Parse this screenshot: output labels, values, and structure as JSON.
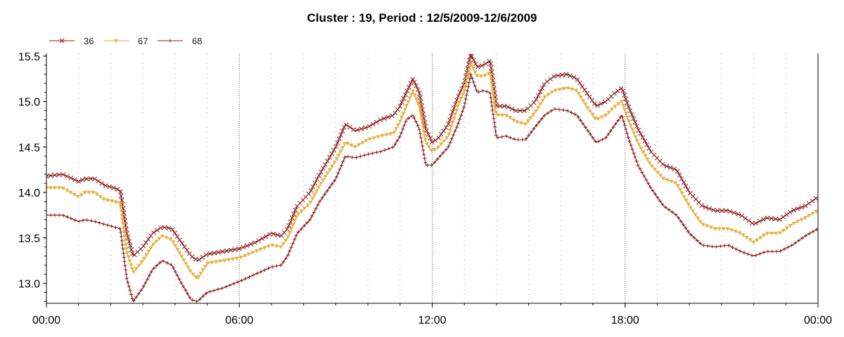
{
  "chart_data": {
    "type": "line",
    "title": "Cluster : 19, Period : 12/5/2009-12/6/2009",
    "xlabel": "",
    "ylabel": "",
    "x_ticks": [
      "00:00",
      "06:00",
      "12:00",
      "18:00",
      "00:00"
    ],
    "x_ticks_hours": [
      0,
      6,
      12,
      18,
      24
    ],
    "xlim_hours": [
      0,
      24
    ],
    "ylim": [
      12.78,
      15.53
    ],
    "y_ticks": [
      "13.0",
      "13.5",
      "14.0",
      "14.5",
      "15.0",
      "15.5"
    ],
    "grid": "vertical dotted",
    "legend_placement": "top-left",
    "series": [
      {
        "name": "36",
        "color": "#8b1a1a",
        "marker": "x",
        "points": [
          [
            0,
            14.18
          ],
          [
            0.5,
            14.2
          ],
          [
            1,
            14.12
          ],
          [
            1.2,
            14.15
          ],
          [
            1.5,
            14.15
          ],
          [
            1.8,
            14.08
          ],
          [
            2.1,
            14.05
          ],
          [
            2.3,
            14.02
          ],
          [
            2.5,
            13.55
          ],
          [
            2.7,
            13.3
          ],
          [
            3,
            13.4
          ],
          [
            3.3,
            13.55
          ],
          [
            3.6,
            13.62
          ],
          [
            3.9,
            13.6
          ],
          [
            4.2,
            13.45
          ],
          [
            4.5,
            13.3
          ],
          [
            4.7,
            13.25
          ],
          [
            5,
            13.32
          ],
          [
            5.5,
            13.35
          ],
          [
            6,
            13.38
          ],
          [
            6.5,
            13.45
          ],
          [
            7,
            13.55
          ],
          [
            7.3,
            13.52
          ],
          [
            7.5,
            13.6
          ],
          [
            7.8,
            13.85
          ],
          [
            8.2,
            14.0
          ],
          [
            8.5,
            14.2
          ],
          [
            9,
            14.5
          ],
          [
            9.3,
            14.75
          ],
          [
            9.6,
            14.68
          ],
          [
            10,
            14.72
          ],
          [
            10.4,
            14.8
          ],
          [
            10.8,
            14.85
          ],
          [
            11,
            14.95
          ],
          [
            11.2,
            15.1
          ],
          [
            11.4,
            15.25
          ],
          [
            11.6,
            15.1
          ],
          [
            11.8,
            14.7
          ],
          [
            12,
            14.55
          ],
          [
            12.2,
            14.6
          ],
          [
            12.5,
            14.75
          ],
          [
            12.8,
            15.05
          ],
          [
            13,
            15.2
          ],
          [
            13.2,
            15.52
          ],
          [
            13.4,
            15.38
          ],
          [
            13.6,
            15.4
          ],
          [
            13.8,
            15.45
          ],
          [
            14,
            14.95
          ],
          [
            14.3,
            14.95
          ],
          [
            14.6,
            14.9
          ],
          [
            14.9,
            14.9
          ],
          [
            15.2,
            15.0
          ],
          [
            15.5,
            15.2
          ],
          [
            15.8,
            15.28
          ],
          [
            16.2,
            15.3
          ],
          [
            16.5,
            15.25
          ],
          [
            16.8,
            15.1
          ],
          [
            17.1,
            14.95
          ],
          [
            17.4,
            15.0
          ],
          [
            17.7,
            15.1
          ],
          [
            17.9,
            15.15
          ],
          [
            18.1,
            14.95
          ],
          [
            18.4,
            14.7
          ],
          [
            18.8,
            14.45
          ],
          [
            19.2,
            14.3
          ],
          [
            19.6,
            14.25
          ],
          [
            20,
            14.0
          ],
          [
            20.4,
            13.85
          ],
          [
            20.8,
            13.8
          ],
          [
            21.2,
            13.8
          ],
          [
            21.6,
            13.75
          ],
          [
            22,
            13.65
          ],
          [
            22.4,
            13.72
          ],
          [
            22.8,
            13.7
          ],
          [
            23.2,
            13.8
          ],
          [
            23.6,
            13.85
          ],
          [
            24,
            13.95
          ]
        ]
      },
      {
        "name": "67",
        "color": "#e8b040",
        "marker": "triangle-down",
        "points": [
          [
            0,
            14.05
          ],
          [
            0.5,
            14.05
          ],
          [
            1,
            13.95
          ],
          [
            1.2,
            14.0
          ],
          [
            1.5,
            14.0
          ],
          [
            1.8,
            13.92
          ],
          [
            2.1,
            13.9
          ],
          [
            2.3,
            13.88
          ],
          [
            2.5,
            13.35
          ],
          [
            2.7,
            13.12
          ],
          [
            3,
            13.25
          ],
          [
            3.3,
            13.42
          ],
          [
            3.6,
            13.52
          ],
          [
            3.9,
            13.48
          ],
          [
            4.2,
            13.3
          ],
          [
            4.5,
            13.12
          ],
          [
            4.7,
            13.05
          ],
          [
            5,
            13.22
          ],
          [
            5.5,
            13.25
          ],
          [
            6,
            13.28
          ],
          [
            6.5,
            13.35
          ],
          [
            7,
            13.42
          ],
          [
            7.3,
            13.4
          ],
          [
            7.5,
            13.5
          ],
          [
            7.8,
            13.75
          ],
          [
            8.2,
            13.88
          ],
          [
            8.5,
            14.08
          ],
          [
            9,
            14.35
          ],
          [
            9.3,
            14.55
          ],
          [
            9.6,
            14.5
          ],
          [
            10,
            14.58
          ],
          [
            10.4,
            14.62
          ],
          [
            10.8,
            14.65
          ],
          [
            11,
            14.78
          ],
          [
            11.2,
            14.95
          ],
          [
            11.4,
            15.12
          ],
          [
            11.6,
            14.95
          ],
          [
            11.8,
            14.55
          ],
          [
            12,
            14.45
          ],
          [
            12.2,
            14.5
          ],
          [
            12.5,
            14.62
          ],
          [
            12.8,
            14.95
          ],
          [
            13,
            15.12
          ],
          [
            13.2,
            15.42
          ],
          [
            13.4,
            15.28
          ],
          [
            13.6,
            15.28
          ],
          [
            13.8,
            15.32
          ],
          [
            14,
            14.85
          ],
          [
            14.3,
            14.85
          ],
          [
            14.6,
            14.78
          ],
          [
            14.9,
            14.75
          ],
          [
            15.2,
            14.88
          ],
          [
            15.5,
            15.05
          ],
          [
            15.8,
            15.12
          ],
          [
            16.2,
            15.15
          ],
          [
            16.5,
            15.12
          ],
          [
            16.8,
            14.95
          ],
          [
            17.1,
            14.8
          ],
          [
            17.4,
            14.85
          ],
          [
            17.7,
            14.95
          ],
          [
            17.9,
            15.0
          ],
          [
            18.1,
            14.8
          ],
          [
            18.4,
            14.55
          ],
          [
            18.8,
            14.3
          ],
          [
            19.2,
            14.15
          ],
          [
            19.6,
            14.1
          ],
          [
            20,
            13.85
          ],
          [
            20.4,
            13.65
          ],
          [
            20.8,
            13.6
          ],
          [
            21.2,
            13.6
          ],
          [
            21.6,
            13.55
          ],
          [
            22,
            13.45
          ],
          [
            22.4,
            13.55
          ],
          [
            22.8,
            13.55
          ],
          [
            23.2,
            13.65
          ],
          [
            23.6,
            13.72
          ],
          [
            24,
            13.8
          ]
        ]
      },
      {
        "name": "68",
        "color": "#8b1a1a",
        "marker": "plus",
        "points": [
          [
            0,
            13.75
          ],
          [
            0.5,
            13.75
          ],
          [
            1,
            13.68
          ],
          [
            1.2,
            13.7
          ],
          [
            1.5,
            13.68
          ],
          [
            1.8,
            13.65
          ],
          [
            2.1,
            13.62
          ],
          [
            2.3,
            13.6
          ],
          [
            2.5,
            13.05
          ],
          [
            2.7,
            12.8
          ],
          [
            3,
            12.95
          ],
          [
            3.3,
            13.15
          ],
          [
            3.6,
            13.25
          ],
          [
            3.9,
            13.2
          ],
          [
            4.2,
            13.0
          ],
          [
            4.5,
            12.82
          ],
          [
            4.7,
            12.8
          ],
          [
            5,
            12.9
          ],
          [
            5.5,
            12.95
          ],
          [
            6,
            13.02
          ],
          [
            6.5,
            13.1
          ],
          [
            7,
            13.18
          ],
          [
            7.3,
            13.2
          ],
          [
            7.5,
            13.3
          ],
          [
            7.8,
            13.55
          ],
          [
            8.2,
            13.7
          ],
          [
            8.5,
            13.9
          ],
          [
            9,
            14.15
          ],
          [
            9.3,
            14.4
          ],
          [
            9.6,
            14.38
          ],
          [
            10,
            14.42
          ],
          [
            10.4,
            14.45
          ],
          [
            10.8,
            14.5
          ],
          [
            11,
            14.62
          ],
          [
            11.2,
            14.8
          ],
          [
            11.4,
            14.85
          ],
          [
            11.6,
            14.7
          ],
          [
            11.8,
            14.3
          ],
          [
            12,
            14.3
          ],
          [
            12.2,
            14.38
          ],
          [
            12.5,
            14.5
          ],
          [
            12.8,
            14.75
          ],
          [
            13,
            14.95
          ],
          [
            13.2,
            15.3
          ],
          [
            13.4,
            15.1
          ],
          [
            13.6,
            15.12
          ],
          [
            13.8,
            15.1
          ],
          [
            14,
            14.6
          ],
          [
            14.3,
            14.62
          ],
          [
            14.6,
            14.58
          ],
          [
            14.9,
            14.58
          ],
          [
            15.2,
            14.72
          ],
          [
            15.5,
            14.85
          ],
          [
            15.8,
            14.92
          ],
          [
            16.2,
            14.9
          ],
          [
            16.5,
            14.85
          ],
          [
            16.8,
            14.7
          ],
          [
            17.1,
            14.55
          ],
          [
            17.4,
            14.6
          ],
          [
            17.7,
            14.75
          ],
          [
            17.9,
            14.85
          ],
          [
            18.1,
            14.6
          ],
          [
            18.4,
            14.3
          ],
          [
            18.8,
            14.05
          ],
          [
            19.2,
            13.85
          ],
          [
            19.6,
            13.75
          ],
          [
            20,
            13.55
          ],
          [
            20.4,
            13.42
          ],
          [
            20.8,
            13.4
          ],
          [
            21.2,
            13.42
          ],
          [
            21.6,
            13.35
          ],
          [
            22,
            13.3
          ],
          [
            22.4,
            13.35
          ],
          [
            22.8,
            13.35
          ],
          [
            23.2,
            13.42
          ],
          [
            23.6,
            13.52
          ],
          [
            24,
            13.6
          ]
        ]
      }
    ]
  }
}
